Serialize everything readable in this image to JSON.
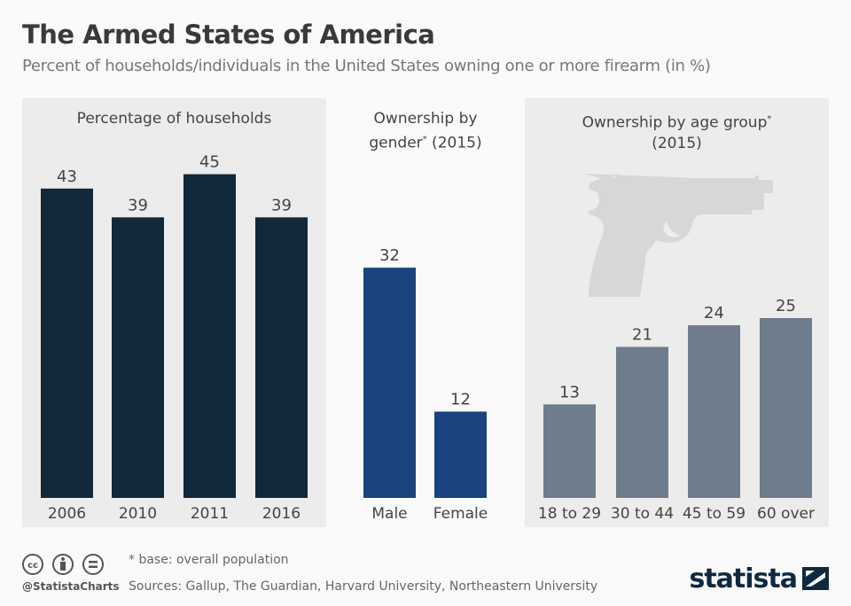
{
  "title": "The Armed States of America",
  "subtitle": "Percent of households/individuals in the United States owning one or more firearm (in %)",
  "chart_data": [
    {
      "type": "bar",
      "title": "Percentage of households",
      "categories": [
        "2006",
        "2010",
        "2011",
        "2016"
      ],
      "values": [
        43,
        39,
        45,
        39
      ],
      "color": "#12283b",
      "ylim": [
        0,
        50
      ]
    },
    {
      "type": "bar",
      "title_main": "Ownership by",
      "title_line2": "gender",
      "title_suffix": " (2015)",
      "asterisk": "*",
      "categories": [
        "Male",
        "Female"
      ],
      "values": [
        32,
        12
      ],
      "color": "#1a4380",
      "ylim": [
        0,
        50
      ]
    },
    {
      "type": "bar",
      "title_main": "Ownership by age group",
      "asterisk": "*",
      "title_line2": "(2015)",
      "categories": [
        "18 to 29",
        "30 to 44",
        "45 to 59",
        "60 over"
      ],
      "values": [
        13,
        21,
        24,
        25
      ],
      "color": "#6e7c8b",
      "ylim": [
        0,
        50
      ]
    }
  ],
  "footer": {
    "note": "* base: overall population",
    "sources": "Sources: Gallup, The Guardian, Harvard University, Northeastern University",
    "handle": "@StatistaCharts",
    "logo": "statista",
    "license_icons": [
      "cc-icon",
      "by-icon",
      "nd-icon"
    ]
  }
}
